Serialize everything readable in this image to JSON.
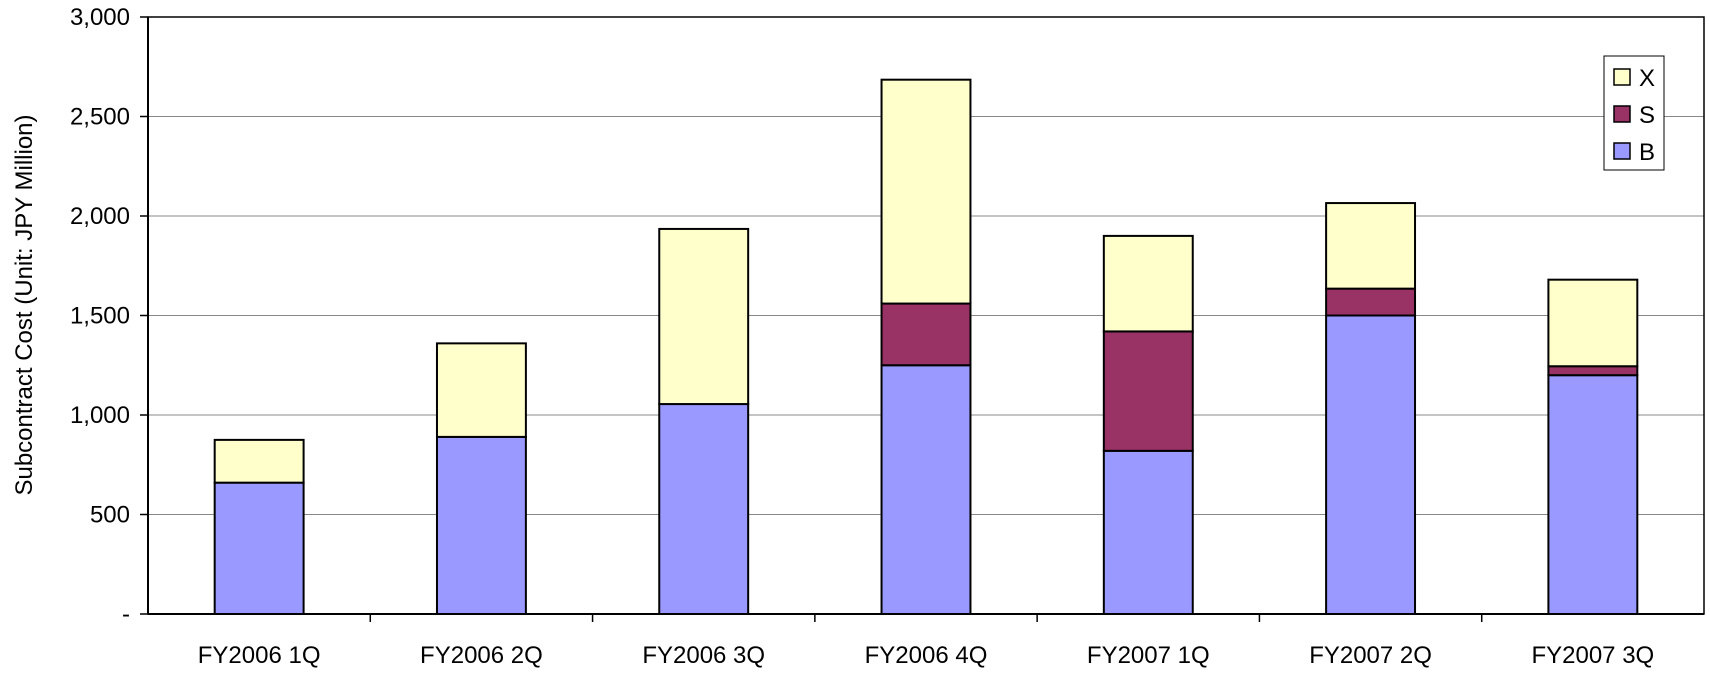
{
  "chart_data": {
    "type": "bar",
    "stacked": true,
    "categories": [
      "FY2006 1Q",
      "FY2006 2Q",
      "FY2006 3Q",
      "FY2006 4Q",
      "FY2007 1Q",
      "FY2007 2Q",
      "FY2007 3Q"
    ],
    "series": [
      {
        "name": "B",
        "color": "#9999ff",
        "values": [
          660,
          890,
          1055,
          1250,
          820,
          1500,
          1200
        ]
      },
      {
        "name": "S",
        "color": "#993366",
        "values": [
          0,
          0,
          0,
          310,
          600,
          135,
          45
        ]
      },
      {
        "name": "X",
        "color": "#ffffcc",
        "values": [
          215,
          470,
          880,
          1125,
          480,
          430,
          435
        ]
      }
    ],
    "title": "",
    "xlabel": "",
    "ylabel": "Subcontract Cost (Unit: JPY Million)",
    "ylim": [
      0,
      3000
    ],
    "yticks": [
      0,
      500,
      1000,
      1500,
      2000,
      2500,
      3000
    ],
    "ytick_labels": [
      "-",
      "500",
      "1,000",
      "1,500",
      "2,000",
      "2,500",
      "3,000"
    ],
    "grid": true,
    "legend_position": "top-right",
    "legend_order": [
      "X",
      "S",
      "B"
    ]
  }
}
